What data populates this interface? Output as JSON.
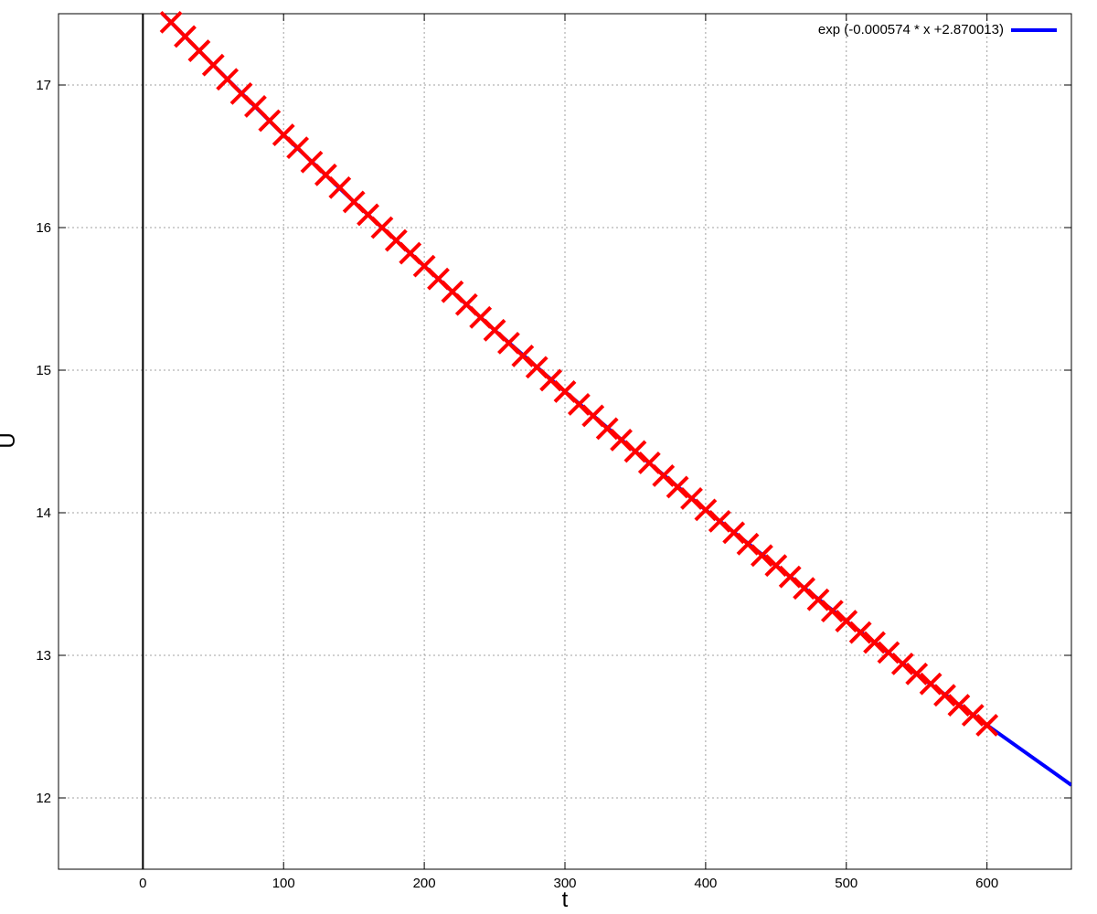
{
  "chart_data": {
    "type": "scatter",
    "title": "",
    "xlabel": "t",
    "ylabel": "U",
    "xlim": [
      -60,
      660
    ],
    "ylim": [
      11.5,
      17.5
    ],
    "x_ticks": [
      0,
      100,
      200,
      300,
      400,
      500,
      600
    ],
    "y_ticks": [
      12,
      13,
      14,
      15,
      16,
      17
    ],
    "grid": true,
    "zero_line_x": 0,
    "legend": {
      "position": "top-right"
    },
    "series": [
      {
        "name": "exp (-0.000574 * x +2.870013)",
        "kind": "line",
        "color": "#0000ff",
        "x": [
          0,
          50,
          100,
          150,
          200,
          250,
          300,
          350,
          400,
          450,
          500,
          550,
          600,
          650,
          660
        ],
        "y": [
          17.64,
          17.14,
          16.65,
          16.18,
          15.73,
          15.28,
          14.85,
          14.43,
          14.02,
          13.63,
          13.24,
          12.87,
          12.51,
          12.16,
          12.09
        ]
      },
      {
        "name": "",
        "kind": "scatter",
        "marker": "x",
        "color": "#ff0000",
        "x": [
          20,
          30,
          40,
          50,
          60,
          70,
          80,
          90,
          100,
          110,
          120,
          130,
          140,
          150,
          160,
          170,
          180,
          190,
          200,
          210,
          220,
          230,
          240,
          250,
          260,
          270,
          280,
          290,
          300,
          310,
          320,
          330,
          340,
          350,
          360,
          370,
          380,
          390,
          400,
          410,
          420,
          430,
          440,
          450,
          460,
          470,
          480,
          490,
          500,
          510,
          520,
          530,
          540,
          550,
          560,
          570,
          580,
          590,
          600
        ],
        "y": [
          17.44,
          17.34,
          17.24,
          17.14,
          17.04,
          16.94,
          16.85,
          16.75,
          16.65,
          16.56,
          16.46,
          16.37,
          16.28,
          16.18,
          16.09,
          16.0,
          15.91,
          15.82,
          15.73,
          15.64,
          15.55,
          15.46,
          15.37,
          15.28,
          15.19,
          15.1,
          15.02,
          14.93,
          14.85,
          14.76,
          14.68,
          14.59,
          14.51,
          14.43,
          14.35,
          14.26,
          14.18,
          14.1,
          14.02,
          13.94,
          13.86,
          13.78,
          13.7,
          13.63,
          13.55,
          13.47,
          13.39,
          13.31,
          13.24,
          13.16,
          13.09,
          13.02,
          12.94,
          12.87,
          12.8,
          12.72,
          12.65,
          12.58,
          12.51
        ]
      }
    ]
  }
}
